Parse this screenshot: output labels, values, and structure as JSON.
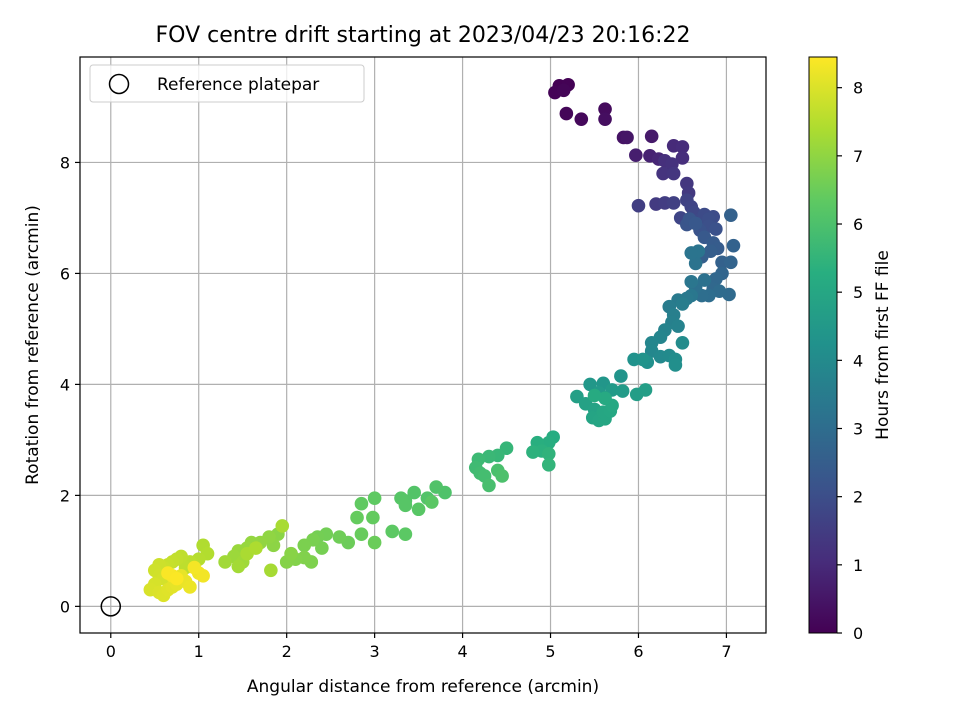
{
  "chart_data": {
    "type": "scatter",
    "title": "FOV centre drift starting at 2023/04/23 20:16:22",
    "xlabel": "Angular distance from reference (arcmin)",
    "ylabel": "Rotation from reference (arcmin)",
    "xlim": [
      -0.35,
      7.45
    ],
    "ylim": [
      -0.48,
      9.9
    ],
    "xticks": [
      0,
      1,
      2,
      3,
      4,
      5,
      6,
      7
    ],
    "yticks": [
      0,
      2,
      4,
      6,
      8
    ],
    "grid": true,
    "legend": {
      "position": "top-left",
      "entries": [
        "Reference platepar"
      ]
    },
    "reference_point": {
      "x": 0,
      "y": 0
    },
    "colorbar": {
      "label": "Hours from first FF file",
      "range": [
        0,
        8.45
      ],
      "ticks": [
        0,
        1,
        2,
        3,
        4,
        5,
        6,
        7,
        8
      ],
      "colormap": "viridis",
      "stops": [
        "#440154",
        "#472d7b",
        "#3b528b",
        "#2c728e",
        "#21918c",
        "#28ae80",
        "#5ec962",
        "#addc30",
        "#fde725"
      ]
    },
    "series": [
      {
        "points": [
          [
            5.1,
            9.38,
            0.0
          ],
          [
            5.2,
            9.4,
            0.03
          ],
          [
            5.05,
            9.26,
            0.06
          ],
          [
            5.15,
            9.3,
            0.09
          ],
          [
            5.18,
            8.88,
            0.12
          ],
          [
            5.35,
            8.78,
            0.18
          ],
          [
            5.62,
            8.96,
            0.25
          ],
          [
            5.62,
            8.78,
            0.32
          ],
          [
            5.83,
            8.45,
            0.42
          ],
          [
            5.87,
            8.45,
            0.5
          ],
          [
            6.15,
            8.47,
            0.6
          ],
          [
            5.97,
            8.13,
            0.7
          ],
          [
            6.13,
            8.12,
            0.8
          ],
          [
            6.23,
            8.06,
            0.9
          ],
          [
            6.4,
            8.3,
            1.0
          ],
          [
            6.5,
            8.28,
            1.05
          ],
          [
            6.5,
            8.08,
            1.1
          ],
          [
            6.3,
            8.03,
            1.15
          ],
          [
            6.38,
            7.97,
            1.2
          ],
          [
            6.28,
            7.8,
            1.25
          ],
          [
            6.4,
            7.8,
            1.3
          ],
          [
            6.55,
            7.62,
            1.35
          ],
          [
            6.57,
            7.45,
            1.4
          ],
          [
            6.2,
            7.25,
            1.45
          ],
          [
            6.3,
            7.27,
            1.5
          ],
          [
            6.0,
            7.22,
            1.55
          ],
          [
            6.4,
            7.27,
            1.6
          ],
          [
            6.55,
            7.32,
            1.65
          ],
          [
            6.6,
            7.2,
            1.7
          ],
          [
            6.48,
            7.0,
            1.75
          ],
          [
            6.63,
            7.1,
            1.8
          ],
          [
            6.7,
            6.97,
            1.85
          ],
          [
            6.75,
            7.06,
            1.9
          ],
          [
            6.85,
            7.02,
            1.95
          ],
          [
            6.8,
            6.98,
            2.0
          ],
          [
            6.8,
            6.85,
            2.05
          ],
          [
            6.88,
            6.8,
            2.1
          ],
          [
            6.7,
            6.78,
            2.15
          ],
          [
            6.55,
            6.88,
            2.2
          ],
          [
            6.58,
            6.98,
            2.25
          ],
          [
            6.65,
            6.9,
            2.3
          ],
          [
            6.75,
            6.65,
            2.35
          ],
          [
            6.85,
            6.55,
            2.4
          ],
          [
            6.9,
            6.45,
            2.45
          ],
          [
            6.82,
            6.4,
            2.5
          ],
          [
            6.72,
            6.3,
            2.55
          ],
          [
            6.95,
            6.2,
            2.6
          ],
          [
            7.05,
            7.05,
            2.62
          ],
          [
            7.08,
            6.5,
            2.65
          ],
          [
            7.05,
            6.2,
            2.7
          ],
          [
            6.95,
            6.0,
            2.75
          ],
          [
            6.88,
            5.9,
            2.8
          ],
          [
            6.85,
            5.72,
            2.85
          ],
          [
            7.03,
            5.62,
            2.9
          ],
          [
            6.92,
            5.68,
            2.95
          ],
          [
            6.8,
            5.6,
            3.0
          ],
          [
            6.72,
            5.6,
            3.05
          ],
          [
            6.65,
            5.75,
            3.1
          ],
          [
            6.75,
            5.88,
            3.15
          ],
          [
            6.65,
            6.18,
            3.2
          ],
          [
            6.68,
            6.4,
            3.22
          ],
          [
            6.6,
            6.37,
            3.25
          ],
          [
            6.6,
            5.85,
            3.3
          ],
          [
            6.6,
            5.6,
            3.35
          ],
          [
            6.55,
            5.55,
            3.4
          ],
          [
            6.45,
            5.52,
            3.45
          ],
          [
            6.35,
            5.4,
            3.5
          ],
          [
            6.5,
            5.45,
            3.55
          ],
          [
            6.4,
            5.25,
            3.6
          ],
          [
            6.38,
            5.12,
            3.65
          ],
          [
            6.45,
            5.05,
            3.7
          ],
          [
            6.3,
            4.98,
            3.75
          ],
          [
            6.25,
            4.85,
            3.8
          ],
          [
            6.15,
            4.75,
            3.85
          ],
          [
            6.15,
            4.6,
            3.9
          ],
          [
            6.25,
            4.5,
            3.95
          ],
          [
            6.35,
            4.52,
            4.0
          ],
          [
            6.5,
            4.75,
            4.05
          ],
          [
            6.42,
            4.45,
            4.1
          ],
          [
            6.42,
            4.35,
            4.15
          ],
          [
            6.1,
            4.4,
            4.2
          ],
          [
            5.95,
            4.45,
            4.25
          ],
          [
            6.05,
            4.45,
            4.3
          ],
          [
            5.8,
            4.15,
            4.35
          ],
          [
            5.6,
            4.02,
            4.4
          ],
          [
            5.45,
            4.0,
            4.45
          ],
          [
            5.55,
            3.85,
            4.5
          ],
          [
            5.7,
            3.9,
            4.55
          ],
          [
            5.82,
            3.88,
            4.6
          ],
          [
            5.98,
            3.82,
            4.65
          ],
          [
            6.08,
            3.9,
            4.7
          ],
          [
            5.3,
            3.78,
            4.75
          ],
          [
            5.4,
            3.65,
            4.8
          ],
          [
            5.5,
            3.55,
            4.85
          ],
          [
            5.48,
            3.4,
            4.9
          ],
          [
            5.55,
            3.35,
            4.95
          ],
          [
            5.62,
            3.38,
            4.98
          ],
          [
            5.6,
            3.5,
            5.0
          ],
          [
            5.68,
            3.52,
            5.03
          ],
          [
            5.7,
            3.62,
            5.06
          ],
          [
            5.62,
            3.75,
            5.1
          ],
          [
            5.5,
            3.8,
            5.15
          ],
          [
            5.03,
            3.05,
            5.2
          ],
          [
            4.98,
            2.95,
            5.25
          ],
          [
            4.85,
            2.95,
            5.3
          ],
          [
            4.9,
            2.8,
            5.35
          ],
          [
            4.8,
            2.78,
            5.4
          ],
          [
            4.98,
            2.75,
            5.45
          ],
          [
            4.98,
            2.55,
            5.5
          ],
          [
            4.5,
            2.85,
            5.55
          ],
          [
            4.4,
            2.72,
            5.6
          ],
          [
            4.3,
            2.7,
            5.65
          ],
          [
            4.18,
            2.65,
            5.7
          ],
          [
            4.15,
            2.5,
            5.75
          ],
          [
            4.2,
            2.4,
            5.8
          ],
          [
            4.25,
            2.35,
            5.85
          ],
          [
            4.3,
            2.18,
            5.9
          ],
          [
            4.4,
            2.45,
            5.95
          ],
          [
            4.45,
            2.35,
            6.0
          ],
          [
            3.8,
            2.05,
            6.05
          ],
          [
            3.7,
            2.15,
            6.08
          ],
          [
            3.6,
            1.95,
            6.1
          ],
          [
            3.45,
            2.05,
            6.12
          ],
          [
            3.35,
            1.9,
            6.15
          ],
          [
            3.3,
            1.95,
            6.18
          ],
          [
            3.35,
            1.82,
            6.2
          ],
          [
            3.5,
            1.75,
            6.22
          ],
          [
            3.65,
            1.88,
            6.25
          ],
          [
            3.35,
            1.3,
            6.28
          ],
          [
            3.2,
            1.35,
            6.3
          ],
          [
            3.0,
            1.95,
            6.33
          ],
          [
            2.85,
            1.85,
            6.36
          ],
          [
            2.98,
            1.6,
            6.4
          ],
          [
            2.8,
            1.6,
            6.43
          ],
          [
            2.85,
            1.3,
            6.46
          ],
          [
            3.0,
            1.15,
            6.5
          ],
          [
            2.7,
            1.15,
            6.53
          ],
          [
            2.6,
            1.25,
            6.56
          ],
          [
            2.45,
            1.3,
            6.6
          ],
          [
            2.35,
            1.25,
            6.63
          ],
          [
            2.4,
            1.05,
            6.66
          ],
          [
            2.3,
            1.2,
            6.7
          ],
          [
            2.2,
            1.1,
            6.73
          ],
          [
            2.28,
            0.8,
            6.76
          ],
          [
            2.2,
            0.88,
            6.8
          ],
          [
            2.1,
            0.85,
            6.83
          ],
          [
            2.0,
            0.8,
            6.86
          ],
          [
            2.05,
            0.95,
            6.9
          ],
          [
            1.9,
            1.3,
            6.93
          ],
          [
            1.85,
            1.1,
            6.96
          ],
          [
            1.8,
            1.25,
            7.0
          ],
          [
            1.7,
            1.15,
            7.03
          ],
          [
            1.6,
            1.15,
            7.06
          ],
          [
            1.55,
            1.05,
            7.1
          ],
          [
            1.45,
            1.0,
            7.13
          ],
          [
            1.4,
            0.9,
            7.16
          ],
          [
            1.5,
            0.8,
            7.2
          ],
          [
            1.3,
            0.8,
            7.23
          ],
          [
            1.45,
            0.72,
            7.26
          ],
          [
            1.82,
            0.65,
            7.3
          ],
          [
            1.95,
            1.45,
            7.33
          ],
          [
            1.55,
            0.95,
            7.36
          ],
          [
            1.65,
            1.05,
            7.4
          ],
          [
            1.05,
            1.1,
            7.43
          ],
          [
            1.1,
            0.95,
            7.46
          ],
          [
            1.0,
            0.85,
            7.5
          ],
          [
            0.95,
            0.75,
            7.53
          ],
          [
            0.9,
            0.8,
            7.56
          ],
          [
            0.85,
            0.7,
            7.6
          ],
          [
            0.8,
            0.9,
            7.63
          ],
          [
            0.75,
            0.85,
            7.66
          ],
          [
            0.7,
            0.8,
            7.7
          ],
          [
            0.65,
            0.75,
            7.73
          ],
          [
            0.6,
            0.7,
            7.76
          ],
          [
            0.55,
            0.75,
            7.8
          ],
          [
            0.5,
            0.65,
            7.83
          ],
          [
            0.55,
            0.55,
            7.86
          ],
          [
            0.6,
            0.5,
            7.9
          ],
          [
            0.5,
            0.4,
            7.93
          ],
          [
            0.45,
            0.3,
            7.96
          ],
          [
            0.55,
            0.25,
            8.0
          ],
          [
            0.6,
            0.2,
            8.03
          ],
          [
            0.65,
            0.3,
            8.06
          ],
          [
            0.7,
            0.35,
            8.1
          ],
          [
            0.75,
            0.4,
            8.13
          ],
          [
            0.8,
            0.55,
            8.16
          ],
          [
            0.85,
            0.45,
            8.2
          ],
          [
            0.9,
            0.35,
            8.23
          ],
          [
            1.0,
            0.6,
            8.26
          ],
          [
            1.05,
            0.55,
            8.3
          ],
          [
            0.95,
            0.7,
            8.33
          ],
          [
            0.7,
            0.55,
            8.36
          ],
          [
            0.65,
            0.6,
            8.4
          ],
          [
            0.75,
            0.5,
            8.43
          ]
        ]
      }
    ]
  }
}
